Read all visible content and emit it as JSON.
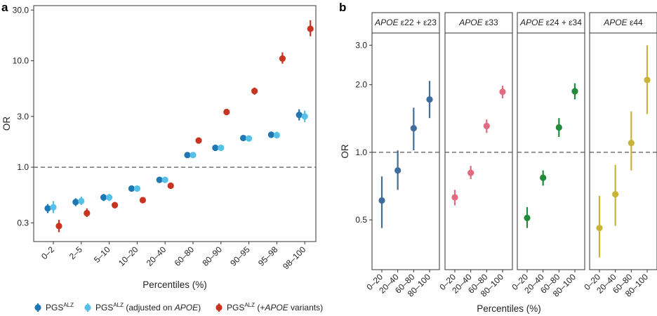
{
  "chart_data": [
    {
      "panel": "a",
      "type": "scatter",
      "xlabel": "Percentiles (%)",
      "ylabel": "OR",
      "yscale": "log",
      "ylim": [
        0.2,
        33
      ],
      "yticks": [
        {
          "value": 0.3,
          "label": "0.3"
        },
        {
          "value": 1,
          "label": "1.0"
        },
        {
          "value": 3,
          "label": "3.0"
        },
        {
          "value": 10,
          "label": "10.0"
        },
        {
          "value": 30,
          "label": "30.0"
        }
      ],
      "reference_line": 1.0,
      "grid": false,
      "categories": [
        "0–2",
        "2–5",
        "5–10",
        "10–20",
        "20–40",
        "60–80",
        "80–90",
        "90–95",
        "95–98",
        "98–100"
      ],
      "series": [
        {
          "name_main": "PGS",
          "name_sup": "ALZ",
          "name_suffix": "",
          "color": "#1f78b4",
          "or": [
            0.41,
            0.47,
            0.52,
            0.63,
            0.76,
            1.3,
            1.52,
            1.88,
            2.02,
            3.1
          ],
          "ci_low": [
            0.37,
            0.43,
            0.48,
            0.6,
            0.73,
            1.25,
            1.46,
            1.78,
            1.88,
            2.75
          ],
          "ci_high": [
            0.45,
            0.51,
            0.56,
            0.66,
            0.79,
            1.35,
            1.58,
            1.98,
            2.16,
            3.5
          ]
        },
        {
          "name_main": "PGS",
          "name_sup": "ALZ",
          "name_suffix": " (adjusted on APOE)",
          "color": "#56c1e8",
          "or": [
            0.42,
            0.48,
            0.52,
            0.63,
            0.76,
            1.3,
            1.52,
            1.86,
            2.0,
            3.0
          ],
          "ci_low": [
            0.37,
            0.44,
            0.48,
            0.6,
            0.73,
            1.25,
            1.46,
            1.76,
            1.86,
            2.65
          ],
          "ci_high": [
            0.48,
            0.53,
            0.56,
            0.66,
            0.79,
            1.35,
            1.58,
            1.96,
            2.16,
            3.4
          ]
        },
        {
          "name_main": "PGS",
          "name_sup": "ALZ",
          "name_suffix": " (+APOE variants)",
          "color": "#c8341f",
          "or": [
            0.28,
            0.37,
            0.44,
            0.49,
            0.67,
            1.78,
            3.3,
            5.2,
            10.5,
            20.0
          ],
          "ci_low": [
            0.245,
            0.34,
            0.41,
            0.47,
            0.64,
            1.72,
            3.15,
            4.8,
            9.4,
            17.0
          ],
          "ci_high": [
            0.32,
            0.41,
            0.47,
            0.51,
            0.7,
            1.85,
            3.45,
            5.6,
            12.0,
            24.0
          ]
        }
      ]
    },
    {
      "panel": "b",
      "type": "scatter",
      "xlabel": "Percentiles (%)",
      "ylabel": "OR",
      "yscale": "log",
      "ylim": [
        0.3,
        3.4
      ],
      "yticks": [
        {
          "value": 0.5,
          "label": "0.5"
        },
        {
          "value": 1.0,
          "label": "1.0"
        },
        {
          "value": 2.0,
          "label": "2.0"
        },
        {
          "value": 3.0,
          "label": "3.0"
        }
      ],
      "reference_line": 1.0,
      "grid": false,
      "categories": [
        "0–20",
        "20–40",
        "60–80",
        "80–100"
      ],
      "facets": [
        {
          "title_italic": "APOE",
          "title_rest": " ε22 + ε23",
          "color": "#3f6e9e",
          "or": [
            0.61,
            0.83,
            1.28,
            1.72
          ],
          "ci_low": [
            0.46,
            0.68,
            1.02,
            1.42
          ],
          "ci_high": [
            0.78,
            1.02,
            1.58,
            2.08
          ]
        },
        {
          "title_italic": "APOE",
          "title_rest": " ε33",
          "color": "#e26b82",
          "or": [
            0.63,
            0.81,
            1.31,
            1.86
          ],
          "ci_low": [
            0.58,
            0.76,
            1.22,
            1.74
          ],
          "ci_high": [
            0.68,
            0.87,
            1.4,
            1.98
          ]
        },
        {
          "title_italic": "APOE",
          "title_rest": " ε24 + ε34",
          "color": "#218a3b",
          "or": [
            0.51,
            0.77,
            1.29,
            1.87
          ],
          "ci_low": [
            0.46,
            0.71,
            1.17,
            1.72
          ],
          "ci_high": [
            0.57,
            0.83,
            1.42,
            2.03
          ]
        },
        {
          "title_italic": "APOE",
          "title_rest": " ε44",
          "color": "#c9b43a",
          "or": [
            0.46,
            0.65,
            1.1,
            2.1
          ],
          "ci_low": [
            0.34,
            0.47,
            0.83,
            1.48
          ],
          "ci_high": [
            0.64,
            0.88,
            1.52,
            3.0
          ]
        }
      ]
    }
  ]
}
